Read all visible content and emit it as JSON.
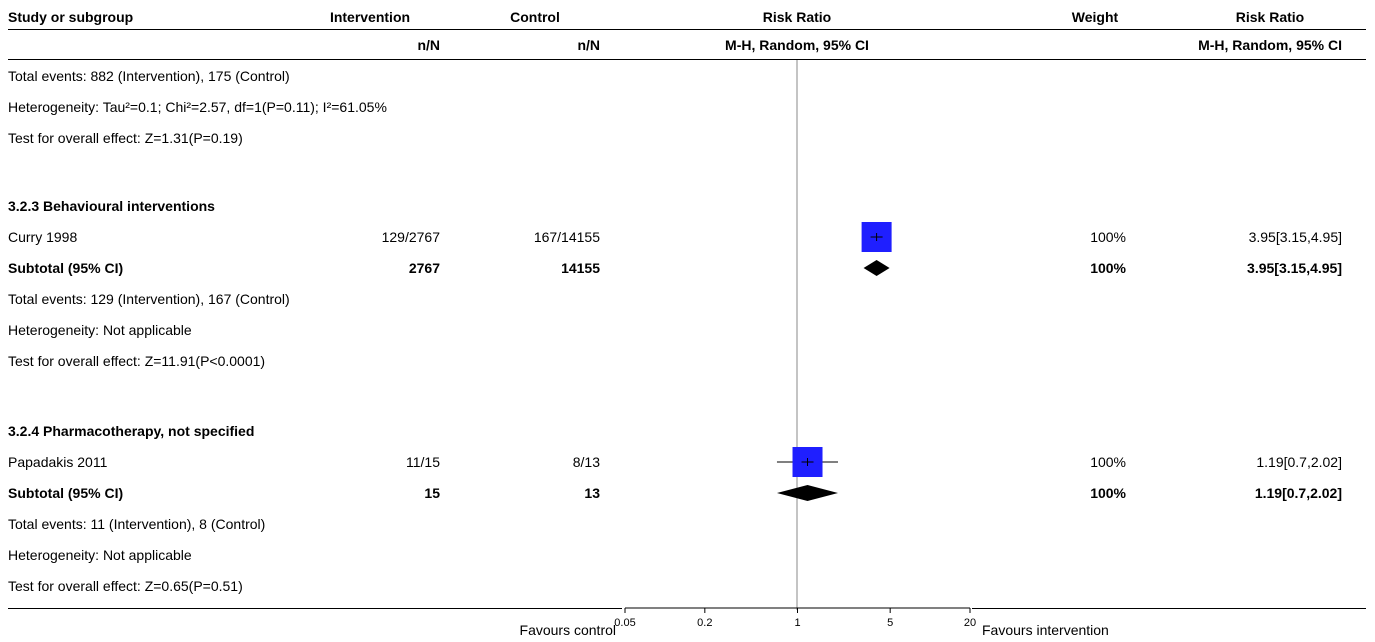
{
  "header": {
    "study_col": "Study or subgroup",
    "intervention_col": "Intervention",
    "intervention_sub": "n/N",
    "control_col": "Control",
    "control_sub": "n/N",
    "rr_plot_col": "Risk Ratio",
    "rr_plot_sub": "M-H, Random, 95% CI",
    "weight_col": "Weight",
    "rr_col": "Risk Ratio",
    "rr_sub": "M-H, Random, 95% CI"
  },
  "top_summary": {
    "total_events": "Total events: 882 (Intervention), 175 (Control)",
    "heterogeneity": "Heterogeneity: Tau²=0.1; Chi²=2.57, df=1(P=0.11); I²=61.05%",
    "overall_effect": "Test for overall effect: Z=1.31(P=0.19)"
  },
  "groups": [
    {
      "title": "3.2.3 Behavioural interventions",
      "study": {
        "name": "Curry 1998",
        "intervention": "129/2767",
        "control": "167/14155",
        "weight": "100%",
        "rr": "3.95[3.15,4.95]"
      },
      "subtotal": {
        "label": "Subtotal (95% CI)",
        "intervention": "2767",
        "control": "14155",
        "weight": "100%",
        "rr": "3.95[3.15,4.95]"
      },
      "total_events": "Total events: 129 (Intervention), 167 (Control)",
      "heterogeneity": "Heterogeneity: Not applicable",
      "overall_effect": "Test for overall effect: Z=11.91(P<0.0001)"
    },
    {
      "title": "3.2.4 Pharmacotherapy, not specified",
      "study": {
        "name": "Papadakis 2011",
        "intervention": "11/15",
        "control": "8/13",
        "weight": "100%",
        "rr": "1.19[0.7,2.02]"
      },
      "subtotal": {
        "label": "Subtotal (95% CI)",
        "intervention": "15",
        "control": "13",
        "weight": "100%",
        "rr": "1.19[0.7,2.02]"
      },
      "total_events": "Total events: 11 (Intervention), 8 (Control)",
      "heterogeneity": "Heterogeneity: Not applicable",
      "overall_effect": "Test for overall effect: Z=0.65(P=0.51)"
    }
  ],
  "footer": {
    "favours_left": "Favours control",
    "favours_right": "Favours intervention"
  },
  "chart_data": {
    "type": "forest",
    "scale": "log",
    "xlim": [
      0.05,
      20
    ],
    "ticks": [
      0.05,
      0.2,
      1,
      5,
      20
    ],
    "tick_labels": [
      "0.05",
      "0.2",
      "1",
      "5",
      "20"
    ],
    "null_line": 1,
    "studies": [
      {
        "name": "Curry 1998",
        "rr": 3.95,
        "ci": [
          3.15,
          4.95
        ],
        "weight": 100
      },
      {
        "name": "Papadakis 2011",
        "rr": 1.19,
        "ci": [
          0.7,
          2.02
        ],
        "weight": 100
      }
    ],
    "subtotals": [
      {
        "label": "Subtotal (95% CI)",
        "rr": 3.95,
        "ci": [
          3.15,
          4.95
        ]
      },
      {
        "label": "Subtotal (95% CI)",
        "rr": 1.19,
        "ci": [
          0.7,
          2.02
        ]
      }
    ],
    "colors": {
      "square": "#1f1fff",
      "diamond": "#000000"
    }
  }
}
